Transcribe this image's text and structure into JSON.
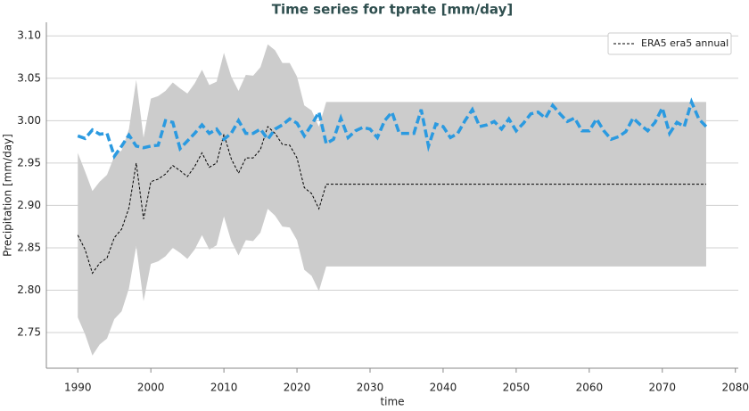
{
  "chart_data": {
    "type": "line",
    "title": "Time series for tprate [mm/day]",
    "xlabel": "time",
    "ylabel": "Precipitation [mm/day]",
    "xlim": [
      1985.7,
      2080.4
    ],
    "ylim": [
      2.708,
      3.116
    ],
    "xticks": [
      1990,
      2000,
      2010,
      2020,
      2030,
      2040,
      2050,
      2060,
      2070,
      2080
    ],
    "yticks": [
      {
        "value": 2.75,
        "label": "2.75"
      },
      {
        "value": 2.8,
        "label": "2.80"
      },
      2.85,
      {
        "value": 2.9,
        "label": "2.90"
      },
      2.95,
      {
        "value": 3.0,
        "label": "3.00"
      },
      3.05,
      {
        "value": 3.1,
        "label": "3.10"
      }
    ],
    "grid": "y",
    "legend": "upper right",
    "band": {
      "color": "#cccccc",
      "x": [
        1990,
        1991,
        1992,
        1993,
        1994,
        1995,
        1996,
        1997,
        1998,
        1999,
        2000,
        2001,
        2002,
        2003,
        2004,
        2005,
        2006,
        2007,
        2008,
        2009,
        2010,
        2011,
        2012,
        2013,
        2014,
        2015,
        2016,
        2017,
        2018,
        2019,
        2020,
        2021,
        2022,
        2023,
        2024,
        2076
      ],
      "upper": [
        2.962,
        2.94,
        2.917,
        2.928,
        2.936,
        2.958,
        2.965,
        2.99,
        3.048,
        2.98,
        3.026,
        3.029,
        3.035,
        3.045,
        3.038,
        3.032,
        3.044,
        3.06,
        3.042,
        3.046,
        3.08,
        3.052,
        3.035,
        3.054,
        3.053,
        3.063,
        3.09,
        3.083,
        3.068,
        3.068,
        3.052,
        3.018,
        3.012,
        2.993,
        3.022,
        3.022
      ],
      "lower": [
        2.768,
        2.748,
        2.723,
        2.736,
        2.743,
        2.766,
        2.775,
        2.802,
        2.852,
        2.787,
        2.831,
        2.834,
        2.84,
        2.85,
        2.844,
        2.837,
        2.848,
        2.865,
        2.848,
        2.853,
        2.887,
        2.858,
        2.841,
        2.859,
        2.858,
        2.868,
        2.896,
        2.888,
        2.875,
        2.874,
        2.859,
        2.824,
        2.817,
        2.799,
        2.828,
        2.828
      ]
    },
    "series": [
      {
        "name": "ERA5 era5 annual",
        "color": "#000000",
        "dash": "3,2",
        "width": 1,
        "x": [
          1990,
          1991,
          1992,
          1993,
          1994,
          1995,
          1996,
          1997,
          1998,
          1999,
          2000,
          2001,
          2002,
          2003,
          2004,
          2005,
          2006,
          2007,
          2008,
          2009,
          2010,
          2011,
          2012,
          2013,
          2014,
          2015,
          2016,
          2017,
          2018,
          2019,
          2020,
          2021,
          2022,
          2023,
          2024,
          2076
        ],
        "values": [
          2.865,
          2.848,
          2.82,
          2.832,
          2.838,
          2.862,
          2.872,
          2.897,
          2.95,
          2.884,
          2.928,
          2.931,
          2.937,
          2.947,
          2.941,
          2.934,
          2.946,
          2.962,
          2.945,
          2.95,
          2.984,
          2.955,
          2.938,
          2.956,
          2.956,
          2.966,
          2.993,
          2.985,
          2.972,
          2.971,
          2.956,
          2.921,
          2.914,
          2.896,
          2.925,
          2.925
        ]
      },
      {
        "color": "#2b9ae0",
        "dash": "9,4",
        "width": 3.5,
        "x": [
          1990,
          1991,
          1992,
          1993,
          1994,
          1995,
          1996,
          1997,
          1998,
          1999,
          2000,
          2001,
          2002,
          2003,
          2004,
          2005,
          2006,
          2007,
          2008,
          2009,
          2010,
          2011,
          2012,
          2013,
          2014,
          2015,
          2016,
          2017,
          2018,
          2019,
          2020,
          2021,
          2022,
          2023,
          2024,
          2025,
          2026,
          2027,
          2028,
          2029,
          2030,
          2031,
          2032,
          2033,
          2034,
          2035,
          2036,
          2037,
          2038,
          2039,
          2040,
          2041,
          2042,
          2043,
          2044,
          2045,
          2046,
          2047,
          2048,
          2049,
          2050,
          2051,
          2052,
          2053,
          2054,
          2055,
          2056,
          2057,
          2058,
          2059,
          2060,
          2061,
          2062,
          2063,
          2064,
          2065,
          2066,
          2067,
          2068,
          2069,
          2070,
          2071,
          2072,
          2073,
          2074,
          2075,
          2076
        ],
        "values": [
          2.982,
          2.979,
          2.989,
          2.984,
          2.985,
          2.958,
          2.97,
          2.983,
          2.97,
          2.968,
          2.97,
          2.971,
          3.0,
          2.998,
          2.967,
          2.976,
          2.985,
          2.995,
          2.985,
          2.99,
          2.978,
          2.985,
          3.0,
          2.985,
          2.985,
          2.99,
          2.978,
          2.99,
          2.995,
          3.002,
          2.997,
          2.982,
          2.995,
          3.01,
          2.973,
          2.978,
          3.003,
          2.98,
          2.988,
          2.992,
          2.99,
          2.98,
          3.0,
          3.01,
          2.985,
          2.985,
          2.985,
          3.013,
          2.97,
          2.996,
          2.993,
          2.98,
          2.985,
          3.0,
          3.013,
          2.993,
          2.995,
          2.999,
          2.99,
          3.002,
          2.988,
          2.997,
          3.008,
          3.01,
          3.003,
          3.018,
          3.008,
          2.999,
          3.003,
          2.988,
          2.988,
          3.002,
          2.988,
          2.978,
          2.981,
          2.987,
          3.003,
          2.995,
          2.988,
          2.998,
          3.015,
          2.985,
          2.998,
          2.993,
          3.022,
          3.002,
          2.993
        ]
      }
    ]
  }
}
